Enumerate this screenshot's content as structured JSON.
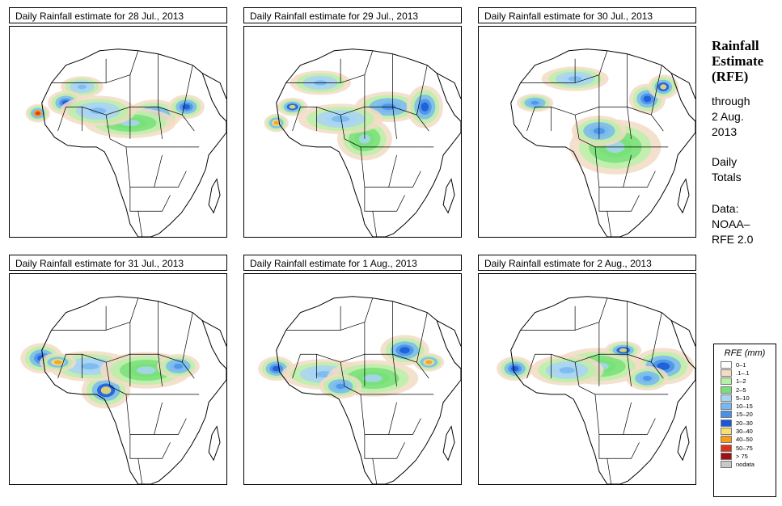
{
  "panels": [
    {
      "title": "Daily Rainfall estimate for  28 Jul., 2013"
    },
    {
      "title": "Daily Rainfall estimate for  29 Jul., 2013"
    },
    {
      "title": "Daily Rainfall estimate for  30 Jul., 2013"
    },
    {
      "title": "Daily Rainfall estimate for  31 Jul., 2013"
    },
    {
      "title": "Daily Rainfall estimate for  1 Aug., 2013"
    },
    {
      "title": "Daily Rainfall estimate for  2 Aug., 2013"
    }
  ],
  "side": {
    "title_line1": "Rainfall",
    "title_line2": "Estimate",
    "title_line3": "(RFE)",
    "through": "through",
    "date_line1": "2 Aug.",
    "date_line2": "2013",
    "daily": "Daily",
    "totals": "Totals",
    "data_label": "Data:",
    "source_line1": "NOAA–",
    "source_line2": "RFE 2.0"
  },
  "legend": {
    "title": "RFE (mm)",
    "items": [
      {
        "label": "0–1",
        "color": "#ffffff"
      },
      {
        "label": ".1–.1",
        "color": "#f2dcc4"
      },
      {
        "label": "1–2",
        "color": "#b8f0a8"
      },
      {
        "label": "2–5",
        "color": "#78e078"
      },
      {
        "label": "5–10",
        "color": "#a8d4f4"
      },
      {
        "label": "10–15",
        "color": "#78b8f0"
      },
      {
        "label": "15–20",
        "color": "#4890e8"
      },
      {
        "label": "20–30",
        "color": "#1858d8"
      },
      {
        "label": "30–40",
        "color": "#f8e070"
      },
      {
        "label": "40–50",
        "color": "#f89c18"
      },
      {
        "label": "50–75",
        "color": "#e03018"
      },
      {
        "label": "> 75",
        "color": "#a01010"
      },
      {
        "label": "nodata",
        "color": "#c8c8c8"
      }
    ]
  }
}
